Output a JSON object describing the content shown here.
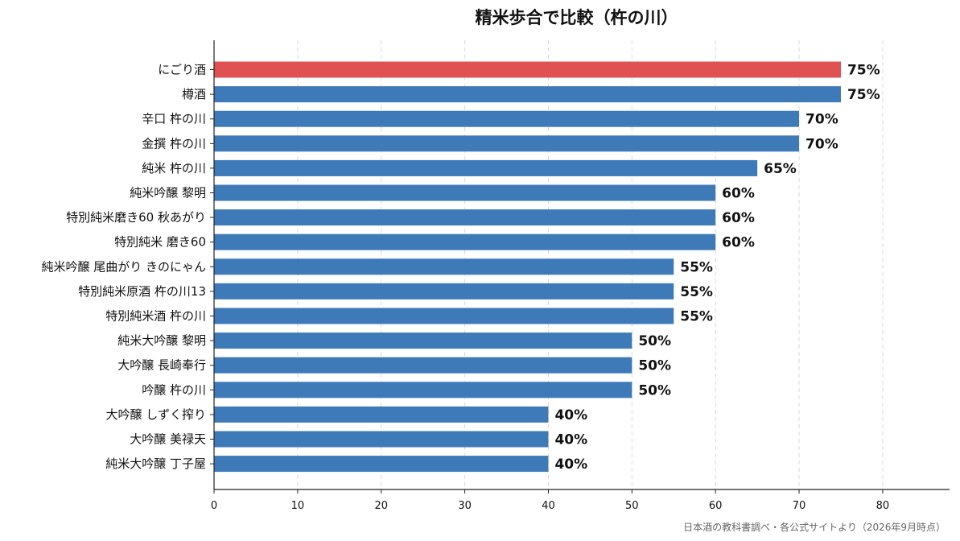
{
  "title": "精米歩合で比較（杵の川）",
  "source_note": "日本酒の教科書調べ・各公式サイトより（2026年9月時点）",
  "colors": {
    "highlight": "#E05252",
    "default": "#3E7AB8"
  },
  "chart_data": {
    "type": "bar",
    "orientation": "horizontal",
    "title": "精米歩合で比較（杵の川）",
    "xlabel": "",
    "ylabel": "",
    "xlim": [
      0,
      88
    ],
    "xticks": [
      0,
      10,
      20,
      30,
      40,
      50,
      60,
      70,
      80
    ],
    "grid": "vertical dashed",
    "value_suffix": "%",
    "categories": [
      "にごり酒",
      "樽酒",
      "辛口 杵の川",
      "金撰 杵の川",
      "純米 杵の川",
      "純米吟醸 黎明",
      "特別純米磨き60 秋あがり",
      "特別純米 磨き60",
      "純米吟醸 尾曲がり きのにゃん",
      "特別純米原酒 杵の川13",
      "特別純米酒 杵の川",
      "純米大吟醸 黎明",
      "大吟醸 長崎奉行",
      "吟醸 杵の川",
      "大吟醸 しずく搾り",
      "大吟醸 美禄天",
      "純米大吟醸 丁子屋"
    ],
    "values": [
      75,
      75,
      70,
      70,
      65,
      60,
      60,
      60,
      55,
      55,
      55,
      50,
      50,
      50,
      40,
      40,
      40
    ],
    "value_labels": [
      "75%",
      "75%",
      "70%",
      "70%",
      "65%",
      "60%",
      "60%",
      "60%",
      "55%",
      "55%",
      "55%",
      "50%",
      "50%",
      "50%",
      "40%",
      "40%",
      "40%"
    ],
    "highlight_index": 0
  }
}
